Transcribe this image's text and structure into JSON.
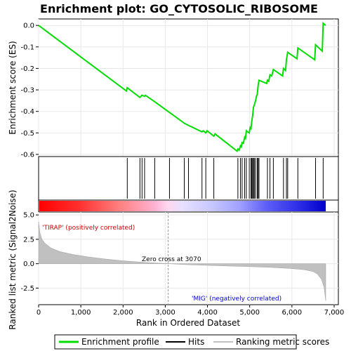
{
  "chart_data": {
    "type": "line",
    "title": "Enrichment plot: GO_CYTOSOLIC_RIBOSOME",
    "xlabel": "Rank in Ordered Dataset",
    "ylabel_top": "Enrichment score (ES)",
    "ylabel_bottom": "Ranked list metric (Signal2Noise)",
    "x_ticks": [
      "0",
      "1,000",
      "2,000",
      "3,000",
      "4,000",
      "5,000",
      "6,000",
      "7,000"
    ],
    "x_tick_values": [
      0,
      1000,
      2000,
      3000,
      4000,
      5000,
      6000,
      7000
    ],
    "xlim": [
      0,
      7100
    ],
    "es_y_ticks": [
      "0.0",
      "-0.1",
      "-0.2",
      "-0.3",
      "-0.4",
      "-0.5",
      "-0.6"
    ],
    "es_y_tick_values": [
      0.0,
      -0.1,
      -0.2,
      -0.3,
      -0.4,
      -0.5,
      -0.6
    ],
    "es_ylim": [
      -0.61,
      0.03
    ],
    "metric_y_ticks": [
      "5.0",
      "2.5",
      "0.0",
      "-2.5"
    ],
    "metric_y_tick_values": [
      5.0,
      2.5,
      0.0,
      -2.5
    ],
    "metric_ylim": [
      -4.2,
      5.3
    ],
    "zero_cross_label": "Zero cross at 3070",
    "zero_cross": 3070,
    "pos_label": "'TIRAP' (positively correlated)",
    "neg_label": "'MIG' (negatively correlated)",
    "legend": [
      "Enrichment profile",
      "Hits",
      "Ranking metric scores"
    ],
    "colors": {
      "profile": "#00dd00",
      "hits": "#000000",
      "metric_fill": "#c0c0c0",
      "pos": "#ff0000",
      "neg": "#0000ff"
    },
    "es_curve": [
      [
        0,
        0.0
      ],
      [
        2080,
        -0.305
      ],
      [
        2100,
        -0.29
      ],
      [
        2400,
        -0.335
      ],
      [
        2450,
        -0.325
      ],
      [
        2510,
        -0.33
      ],
      [
        2530,
        -0.325
      ],
      [
        2750,
        -0.355
      ],
      [
        3450,
        -0.455
      ],
      [
        3550,
        -0.465
      ],
      [
        3870,
        -0.495
      ],
      [
        3900,
        -0.49
      ],
      [
        3960,
        -0.5
      ],
      [
        3990,
        -0.49
      ],
      [
        4150,
        -0.515
      ],
      [
        4180,
        -0.505
      ],
      [
        4700,
        -0.585
      ],
      [
        4720,
        -0.575
      ],
      [
        4750,
        -0.58
      ],
      [
        4780,
        -0.56
      ],
      [
        4800,
        -0.565
      ],
      [
        4820,
        -0.545
      ],
      [
        4850,
        -0.548
      ],
      [
        4880,
        -0.52
      ],
      [
        4900,
        -0.525
      ],
      [
        4920,
        -0.49
      ],
      [
        4950,
        -0.495
      ],
      [
        4990,
        -0.5
      ],
      [
        5010,
        -0.475
      ],
      [
        5030,
        -0.48
      ],
      [
        5050,
        -0.445
      ],
      [
        5070,
        -0.42
      ],
      [
        5090,
        -0.38
      ],
      [
        5110,
        -0.37
      ],
      [
        5140,
        -0.35
      ],
      [
        5160,
        -0.33
      ],
      [
        5180,
        -0.32
      ],
      [
        5200,
        -0.28
      ],
      [
        5220,
        -0.255
      ],
      [
        5400,
        -0.27
      ],
      [
        5420,
        -0.255
      ],
      [
        5450,
        -0.26
      ],
      [
        5480,
        -0.23
      ],
      [
        5520,
        -0.235
      ],
      [
        5560,
        -0.205
      ],
      [
        5780,
        -0.235
      ],
      [
        5800,
        -0.2
      ],
      [
        5850,
        -0.21
      ],
      [
        5870,
        -0.16
      ],
      [
        5900,
        -0.125
      ],
      [
        6120,
        -0.155
      ],
      [
        6140,
        -0.105
      ],
      [
        6540,
        -0.16
      ],
      [
        6560,
        -0.09
      ],
      [
        6720,
        -0.12
      ],
      [
        6740,
        0.01
      ],
      [
        6800,
        0.0
      ]
    ],
    "hits": [
      2100,
      2400,
      2450,
      2510,
      2750,
      3100,
      3450,
      3550,
      3870,
      3960,
      4150,
      4720,
      4780,
      4820,
      4880,
      4920,
      4990,
      5030,
      5050,
      5070,
      5090,
      5110,
      5140,
      5180,
      5200,
      5220,
      5420,
      5480,
      5560,
      5800,
      5870,
      5900,
      6140,
      6560,
      6740
    ],
    "metric_curve": [
      [
        0,
        4.3
      ],
      [
        30,
        3.2
      ],
      [
        80,
        2.5
      ],
      [
        150,
        2.1
      ],
      [
        300,
        1.6
      ],
      [
        500,
        1.25
      ],
      [
        800,
        0.95
      ],
      [
        1200,
        0.68
      ],
      [
        1600,
        0.47
      ],
      [
        2000,
        0.3
      ],
      [
        2500,
        0.14
      ],
      [
        3070,
        0.0
      ],
      [
        3500,
        -0.1
      ],
      [
        4000,
        -0.17
      ],
      [
        4500,
        -0.24
      ],
      [
        5000,
        -0.3
      ],
      [
        5500,
        -0.38
      ],
      [
        6000,
        -0.5
      ],
      [
        6300,
        -0.62
      ],
      [
        6500,
        -0.8
      ],
      [
        6600,
        -1.05
      ],
      [
        6700,
        -1.6
      ],
      [
        6760,
        -2.4
      ],
      [
        6800,
        -3.8
      ]
    ],
    "color_bar_stops": [
      [
        0,
        "#ff0000"
      ],
      [
        0.14,
        "#ff3030"
      ],
      [
        0.28,
        "#ff8080"
      ],
      [
        0.4,
        "#ffb0d0"
      ],
      [
        0.45,
        "#ffd8f0"
      ],
      [
        0.5,
        "#e8e0ff"
      ],
      [
        0.6,
        "#c8c8ff"
      ],
      [
        0.7,
        "#a0a0ff"
      ],
      [
        0.79,
        "#6060f8"
      ],
      [
        0.9,
        "#3030e8"
      ],
      [
        1.0,
        "#0000cc"
      ]
    ]
  }
}
